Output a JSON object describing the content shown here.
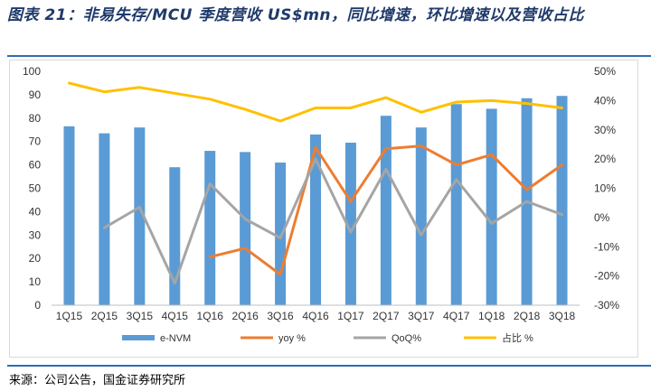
{
  "title": "图表 21：非易失存/MCU 季度营收 US$mn，同比增速，环比增速以及营收占比",
  "source": "来源：公司公告，国金证券研究所",
  "colors": {
    "bar": "#5b9bd5",
    "yoy": "#ed7d31",
    "qoq": "#a5a5a5",
    "share": "#ffc000",
    "rule": "#2e6db4",
    "title": "#1f3a6b"
  },
  "chart_data": {
    "type": "bar",
    "categories": [
      "1Q15",
      "2Q15",
      "3Q15",
      "4Q15",
      "1Q16",
      "2Q16",
      "3Q16",
      "4Q16",
      "1Q17",
      "2Q17",
      "3Q17",
      "4Q17",
      "1Q18",
      "2Q18",
      "3Q18"
    ],
    "y_left": {
      "min": 0,
      "max": 100,
      "ticks": [
        "0",
        "10",
        "20",
        "30",
        "40",
        "50",
        "60",
        "70",
        "80",
        "90",
        "100"
      ]
    },
    "y_right": {
      "min": -30,
      "max": 50,
      "ticks": [
        "-30%",
        "-20%",
        "-10%",
        "0%",
        "10%",
        "20%",
        "30%",
        "40%",
        "50%"
      ]
    },
    "grid": false,
    "legend_position": "bottom",
    "series": [
      {
        "name": "e-NVM",
        "type": "bar",
        "axis": "left",
        "values": [
          76.5,
          73.5,
          76,
          59,
          66,
          65.5,
          61,
          73,
          69.5,
          81,
          76,
          86,
          84,
          88.5,
          89.5
        ]
      },
      {
        "name": "yoy %",
        "type": "line",
        "axis": "right",
        "values": [
          null,
          null,
          null,
          null,
          -13.5,
          -10.5,
          -19.5,
          24,
          5.5,
          23.5,
          24.5,
          18,
          21.5,
          9.5,
          18
        ]
      },
      {
        "name": "QoQ%",
        "type": "line",
        "axis": "right",
        "values": [
          null,
          -3.5,
          3.5,
          -22.5,
          11.5,
          -0.5,
          -7,
          20,
          -5,
          16.5,
          -6,
          13,
          -2,
          5.5,
          1
        ]
      },
      {
        "name": "占比 %",
        "type": "line",
        "axis": "right",
        "values": [
          46,
          43,
          44.5,
          42.5,
          40.5,
          37,
          33,
          37.5,
          37.5,
          41,
          36,
          39.5,
          40,
          39,
          37.5
        ]
      }
    ]
  }
}
